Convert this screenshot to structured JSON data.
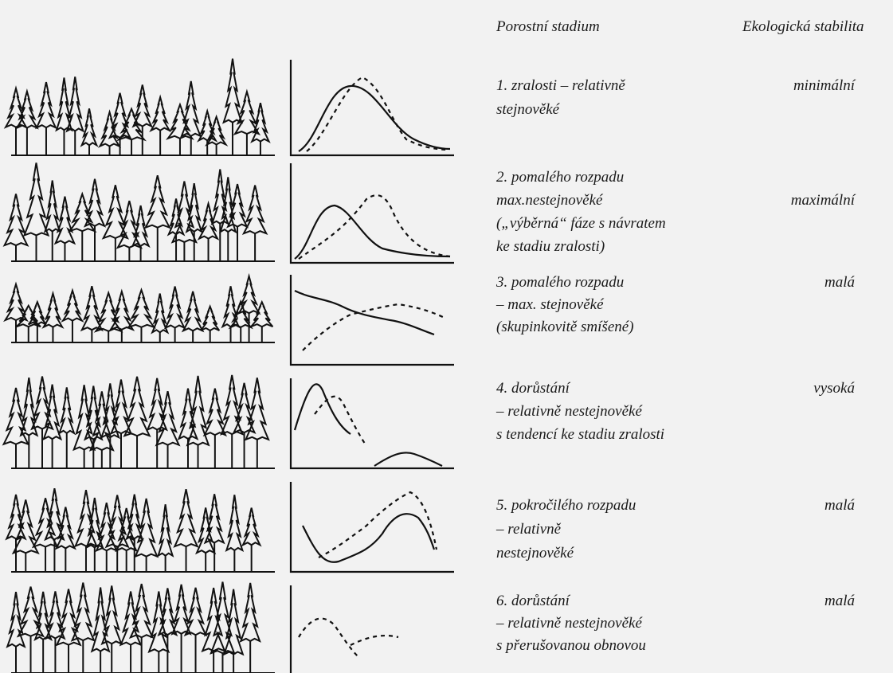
{
  "header": {
    "stage": "Porostní stadium",
    "stability": "Ekologická stabilita"
  },
  "rows": [
    {
      "stage": [
        "1. zralosti – relativně",
        "stejnověké"
      ],
      "stability": "minimální"
    },
    {
      "stage": [
        "2. pomalého rozpadu",
        "max.nestejnověké",
        "(„výběrná“ fáze s návratem",
        "ke stadiu zralosti)"
      ],
      "stability": "maximální"
    },
    {
      "stage": [
        "3. pomalého rozpadu",
        "– max. stejnověké",
        "(skupinkovitě smíšené)"
      ],
      "stability": "malá"
    },
    {
      "stage": [
        "4. dorůstání",
        "– relativně nestejnověké",
        "s tendencí ke stadiu zralosti"
      ],
      "stability": "vysoká"
    },
    {
      "stage": [
        "5. pokročilého rozpadu",
        "– relativně",
        "nestejnověké"
      ],
      "stability": "malá"
    },
    {
      "stage": [
        "6. dorůstání",
        "– relativně nestejnověké",
        "s přerušovanou obnovou"
      ],
      "stability": "malá"
    }
  ]
}
